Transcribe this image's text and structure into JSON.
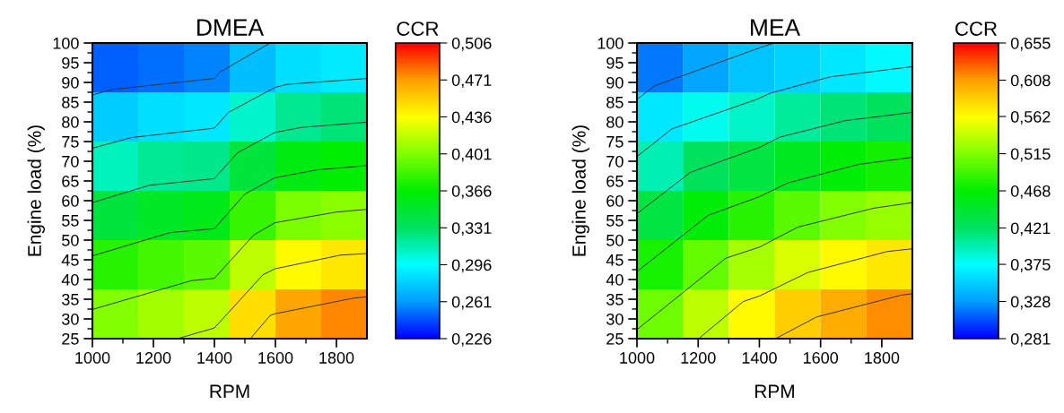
{
  "chart_data": [
    {
      "type": "heatmap",
      "title": "DMEA",
      "xlabel": "RPM",
      "ylabel": "Engine load (%)",
      "clabel": "CCR",
      "x": [
        1075,
        1225,
        1375,
        1525,
        1675,
        1825
      ],
      "y": [
        93.75,
        81.25,
        68.75,
        56.25,
        43.75,
        31.25
      ],
      "cells": [
        [
          0.247,
          0.251,
          0.255,
          0.273,
          0.285,
          0.289
        ],
        [
          0.278,
          0.284,
          0.288,
          0.308,
          0.321,
          0.326
        ],
        [
          0.311,
          0.319,
          0.322,
          0.345,
          0.36,
          0.365
        ],
        [
          0.344,
          0.352,
          0.357,
          0.381,
          0.399,
          0.404
        ],
        [
          0.376,
          0.384,
          0.391,
          0.418,
          0.438,
          0.444
        ],
        [
          0.402,
          0.41,
          0.418,
          0.447,
          0.468,
          0.476
        ]
      ],
      "series": [
        {
          "type": "line",
          "color": "#333333",
          "x": [
            1000,
            1064,
            1400,
            1420,
            1583
          ],
          "values": [
            86.8,
            88.2,
            91.0,
            92.7,
            100
          ]
        },
        {
          "type": "line",
          "color": "#333333",
          "x": [
            1000,
            1127,
            1400,
            1446,
            1598,
            1637,
            1900
          ],
          "values": [
            73.3,
            76.0,
            78.4,
            82.4,
            88.7,
            89.5,
            91.0
          ]
        },
        {
          "type": "line",
          "color": "#333333",
          "x": [
            1000,
            1186,
            1400,
            1475,
            1598,
            1686,
            1900
          ],
          "values": [
            59.5,
            63.9,
            65.6,
            72.1,
            77.3,
            78.6,
            79.9
          ]
        },
        {
          "type": "line",
          "color": "#333333",
          "x": [
            1000,
            1255,
            1400,
            1500,
            1598,
            1735,
            1900
          ],
          "values": [
            46.0,
            51.9,
            52.9,
            61.7,
            65.8,
            67.8,
            68.9
          ]
        },
        {
          "type": "line",
          "color": "#333333",
          "x": [
            1000,
            1324,
            1400,
            1529,
            1598,
            1799,
            1900
          ],
          "values": [
            32.4,
            39.7,
            40.3,
            51.3,
            54.4,
            57.1,
            57.8
          ]
        },
        {
          "type": "line",
          "color": "#333333",
          "x": [
            1279,
            1400,
            1559,
            1598,
            1814,
            1900
          ],
          "values": [
            25,
            27.7,
            41.2,
            42.7,
            46.2,
            46.6
          ]
        },
        {
          "type": "line",
          "color": "#333333",
          "x": [
            1518,
            1583,
            1598,
            1858,
            1900
          ],
          "values": [
            25,
            30.9,
            31.3,
            35.3,
            35.6
          ]
        }
      ],
      "xlim": [
        1000,
        1900
      ],
      "xticks": [
        1000,
        1200,
        1400,
        1600,
        1800
      ],
      "ylim": [
        25,
        100
      ],
      "yticks": [
        25,
        30,
        35,
        40,
        45,
        50,
        55,
        60,
        65,
        70,
        75,
        80,
        85,
        90,
        95,
        100
      ],
      "clim": [
        0.226,
        0.506
      ],
      "cticks": [
        {
          "value": 0.226,
          "label": "0,226"
        },
        {
          "value": 0.261,
          "label": "0,261"
        },
        {
          "value": 0.296,
          "label": "0,296"
        },
        {
          "value": 0.331,
          "label": "0,331"
        },
        {
          "value": 0.366,
          "label": "0,366"
        },
        {
          "value": 0.401,
          "label": "0,401"
        },
        {
          "value": 0.436,
          "label": "0,436"
        },
        {
          "value": 0.471,
          "label": "0,471"
        },
        {
          "value": 0.506,
          "label": "0,506"
        }
      ]
    },
    {
      "type": "heatmap",
      "title": "MEA",
      "xlabel": "RPM",
      "ylabel": "Engine load (%)",
      "clabel": "CCR",
      "x": [
        1075,
        1225,
        1375,
        1525,
        1675,
        1825
      ],
      "y": [
        93.75,
        81.25,
        68.75,
        56.25,
        43.75,
        31.25
      ],
      "cells": [
        [
          0.317,
          0.332,
          0.346,
          0.354,
          0.364,
          0.373
        ],
        [
          0.363,
          0.379,
          0.391,
          0.405,
          0.415,
          0.423
        ],
        [
          0.397,
          0.423,
          0.436,
          0.453,
          0.466,
          0.474
        ],
        [
          0.437,
          0.464,
          0.482,
          0.501,
          0.515,
          0.523
        ],
        [
          0.476,
          0.504,
          0.528,
          0.548,
          0.563,
          0.573
        ],
        [
          0.508,
          0.537,
          0.563,
          0.585,
          0.601,
          0.613
        ]
      ],
      "series": [
        {
          "type": "line",
          "color": "#333333",
          "x": [
            1000,
            1057,
            1405,
            1449
          ],
          "values": [
            85.7,
            89.1,
            98.9,
            100
          ]
        },
        {
          "type": "line",
          "color": "#333333",
          "x": [
            1000,
            1114,
            1395,
            1433,
            1631,
            1900
          ],
          "values": [
            71.2,
            78.2,
            85.8,
            87.2,
            91.4,
            94.0
          ]
        },
        {
          "type": "line",
          "color": "#333333",
          "x": [
            1000,
            1175,
            1400,
            1466,
            1680,
            1900
          ],
          "values": [
            56.7,
            67.2,
            73.5,
            76.1,
            80.3,
            82.4
          ]
        },
        {
          "type": "line",
          "color": "#333333",
          "x": [
            1000,
            1233,
            1400,
            1493,
            1724,
            1900
          ],
          "values": [
            42.0,
            56.3,
            61.0,
            64.5,
            69.2,
            71.0
          ]
        },
        {
          "type": "line",
          "color": "#333333",
          "x": [
            1000,
            1290,
            1400,
            1526,
            1774,
            1900
          ],
          "values": [
            27.3,
            45.4,
            48.2,
            53.3,
            58.1,
            59.5
          ]
        },
        {
          "type": "line",
          "color": "#333333",
          "x": [
            1202,
            1347,
            1400,
            1559,
            1818,
            1900
          ],
          "values": [
            25,
            34.4,
            35.8,
            41.8,
            47.1,
            47.8
          ]
        },
        {
          "type": "line",
          "color": "#333333",
          "x": [
            1453,
            1587,
            1862,
            1900
          ],
          "values": [
            25,
            30.5,
            36.0,
            36.4
          ]
        }
      ],
      "xlim": [
        1000,
        1900
      ],
      "xticks": [
        1000,
        1200,
        1400,
        1600,
        1800
      ],
      "ylim": [
        25,
        100
      ],
      "yticks": [
        25,
        30,
        35,
        40,
        45,
        50,
        55,
        60,
        65,
        70,
        75,
        80,
        85,
        90,
        95,
        100
      ],
      "clim": [
        0.281,
        0.655
      ],
      "cticks": [
        {
          "value": 0.281,
          "label": "0,281"
        },
        {
          "value": 0.328,
          "label": "0,328"
        },
        {
          "value": 0.375,
          "label": "0,375"
        },
        {
          "value": 0.421,
          "label": "0,421"
        },
        {
          "value": 0.468,
          "label": "0,468"
        },
        {
          "value": 0.515,
          "label": "0,515"
        },
        {
          "value": 0.562,
          "label": "0,562"
        },
        {
          "value": 0.608,
          "label": "0,608"
        },
        {
          "value": 0.655,
          "label": "0,655"
        }
      ]
    }
  ]
}
